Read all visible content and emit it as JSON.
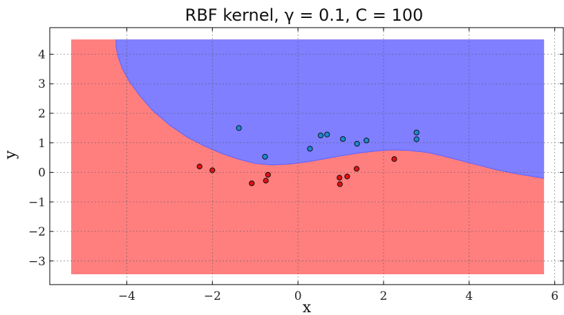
{
  "chart_data": {
    "type": "scatter",
    "title": "RBF kernel, γ = 0.1, C = 100",
    "xlabel": "x",
    "ylabel": "y",
    "xlim": [
      -5.8,
      6.2
    ],
    "ylim": [
      -3.8,
      4.9
    ],
    "xticks": [
      -4,
      -2,
      0,
      2,
      4,
      6
    ],
    "yticks": [
      -3,
      -2,
      -1,
      0,
      1,
      2,
      3,
      4
    ],
    "xtick_labels": [
      "−4",
      "−2",
      "0",
      "2",
      "4",
      "6"
    ],
    "ytick_labels": [
      "−3",
      "−2",
      "−1",
      "0",
      "1",
      "2",
      "3",
      "4"
    ],
    "grid": true,
    "decision_region": {
      "x_range": [
        -5.3,
        5.75
      ],
      "y_range": [
        -3.45,
        4.5
      ],
      "region_colors": {
        "class_0": "#ff7f7f",
        "class_1": "#7f7fff"
      },
      "boundary_color": "#6060ff",
      "boundary": [
        [
          -4.25,
          4.5
        ],
        [
          -4.25,
          4.25
        ],
        [
          -4.2,
          3.9
        ],
        [
          -4.1,
          3.5
        ],
        [
          -3.95,
          3.1
        ],
        [
          -3.7,
          2.6
        ],
        [
          -3.4,
          2.1
        ],
        [
          -3.0,
          1.6
        ],
        [
          -2.6,
          1.2
        ],
        [
          -2.2,
          0.9
        ],
        [
          -1.8,
          0.65
        ],
        [
          -1.4,
          0.45
        ],
        [
          -1.0,
          0.3
        ],
        [
          -0.6,
          0.25
        ],
        [
          -0.2,
          0.28
        ],
        [
          0.2,
          0.35
        ],
        [
          0.6,
          0.45
        ],
        [
          1.0,
          0.56
        ],
        [
          1.4,
          0.65
        ],
        [
          1.8,
          0.72
        ],
        [
          2.2,
          0.76
        ],
        [
          2.6,
          0.74
        ],
        [
          3.0,
          0.68
        ],
        [
          3.4,
          0.55
        ],
        [
          3.8,
          0.4
        ],
        [
          4.2,
          0.25
        ],
        [
          4.6,
          0.1
        ],
        [
          5.0,
          -0.02
        ],
        [
          5.4,
          -0.12
        ],
        [
          5.75,
          -0.2
        ]
      ]
    },
    "series": [
      {
        "color": "#e01010",
        "points": [
          [
            -2.3,
            0.2
          ],
          [
            -2.0,
            0.07
          ],
          [
            -1.08,
            -0.37
          ],
          [
            -0.75,
            -0.28
          ],
          [
            -0.7,
            -0.08
          ],
          [
            0.97,
            -0.18
          ],
          [
            0.98,
            -0.4
          ],
          [
            1.15,
            -0.14
          ],
          [
            1.37,
            0.12
          ],
          [
            2.25,
            0.45
          ]
        ]
      },
      {
        "color": "#1a8ad4",
        "points": [
          [
            -1.38,
            1.5
          ],
          [
            -0.77,
            0.53
          ],
          [
            0.28,
            0.8
          ],
          [
            0.53,
            1.25
          ],
          [
            0.68,
            1.28
          ],
          [
            1.05,
            1.13
          ],
          [
            1.38,
            0.97
          ],
          [
            1.6,
            1.08
          ],
          [
            2.77,
            1.35
          ],
          [
            2.77,
            1.12
          ]
        ]
      }
    ]
  }
}
